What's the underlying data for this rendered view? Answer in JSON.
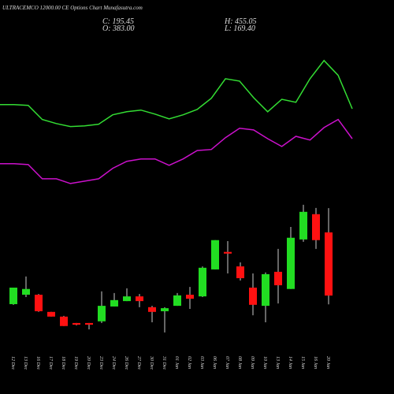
{
  "chart_data": {
    "type": "candlestick",
    "title": "ULTRACEMCO 12000.00 CE Options Chart Munafasutra.com",
    "close_label": "C: 195.45",
    "high_label": "H: 455.05",
    "open_label": "O: 383.00",
    "low_label": "L: 169.40",
    "categories": [
      "12 Dec",
      "13 Dec",
      "16 Dec",
      "17 Dec",
      "18 Dec",
      "19 Dec",
      "20 Dec",
      "23 Dec",
      "24 Dec",
      "26 Dec",
      "27 Dec",
      "30 Dec",
      "31 Dec",
      "01 Jan",
      "02 Jan",
      "03 Jan",
      "06 Jan",
      "07 Jan",
      "08 Jan",
      "09 Jan",
      "10 Jan",
      "13 Jan",
      "14 Jan",
      "15 Jan",
      "16 Jan",
      "20 Jan"
    ],
    "open": [
      170,
      198,
      198,
      147,
      133,
      114,
      114,
      119,
      163,
      179,
      193,
      161,
      149,
      165,
      198,
      193,
      273,
      325,
      282,
      219,
      165,
      266,
      215,
      362,
      437,
      383
    ],
    "high": [
      219,
      252,
      200,
      147,
      135,
      114,
      114,
      208,
      203,
      217,
      200,
      165,
      161,
      203,
      221,
      282,
      360,
      357,
      294,
      261,
      264,
      334,
      399,
      465,
      455.5,
      455.05
    ],
    "low": [
      168,
      191,
      147,
      133,
      105,
      107,
      95,
      114,
      163,
      179,
      161,
      116,
      86,
      165,
      156,
      191,
      273,
      261,
      240,
      137,
      116,
      172,
      215,
      355,
      334,
      169.4
    ],
    "close": [
      219,
      215,
      149,
      133,
      105,
      109,
      109,
      165,
      182,
      193,
      179,
      147,
      158,
      196,
      186,
      278,
      360,
      320,
      247,
      168,
      259,
      226,
      367,
      444,
      360,
      195.45
    ],
    "up_color": "#22dd22",
    "down_color": "#ff1111",
    "lines": [
      {
        "color": "#33dd33",
        "values": [
          762,
          762,
          760,
          718,
          706,
          697,
          699,
          704,
          732,
          741,
          746,
          734,
          720,
          732,
          748,
          781,
          839,
          832,
          783,
          741,
          778,
          769,
          839,
          893,
          849,
          750
        ]
      },
      {
        "color": "#cc11cc",
        "values": [
          587,
          587,
          584,
          542,
          542,
          528,
          535,
          542,
          573,
          594,
          601,
          601,
          582,
          601,
          626,
          629,
          664,
          692,
          687,
          661,
          638,
          668,
          657,
          694,
          718,
          661
        ]
      }
    ],
    "ylim": [
      60,
      930
    ]
  }
}
